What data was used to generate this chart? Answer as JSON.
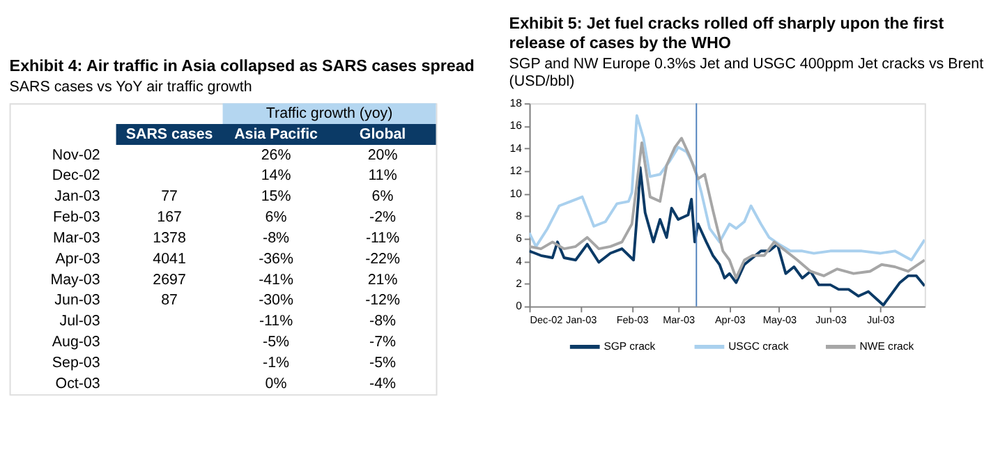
{
  "chart_data": [
    {
      "type": "other",
      "title": "Exhibit 4: Air traffic in Asia collapsed as SARS cases spread",
      "subtitle": "SARS cases vs YoY air traffic growth",
      "annotations": [
        "Traffic growth (yoy)"
      ],
      "categories": [
        "Nov-02",
        "Dec-02",
        "Jan-03",
        "Feb-03",
        "Mar-03",
        "Apr-03",
        "May-03",
        "Jun-03",
        "Jul-03",
        "Aug-03",
        "Sep-03",
        "Oct-03"
      ],
      "series": [
        {
          "name": "SARS cases",
          "values": [
            null,
            null,
            77,
            167,
            1378,
            4041,
            2697,
            87,
            null,
            null,
            null,
            null
          ],
          "value_labels": [
            null,
            null,
            "77",
            "167",
            "1378",
            "4041",
            "2697",
            "87",
            null,
            null,
            null,
            null
          ]
        },
        {
          "name": "Asia Pacific",
          "values": [
            26,
            14,
            15,
            6,
            -8,
            -36,
            -41,
            -30,
            -11,
            -5,
            -1,
            0
          ],
          "value_labels": [
            "26%",
            "14%",
            "15%",
            "6%",
            "-8%",
            "-36%",
            "-41%",
            "-30%",
            "-11%",
            "-5%",
            "-1%",
            "0%"
          ]
        },
        {
          "name": "Global",
          "values": [
            20,
            11,
            6,
            -2,
            -11,
            -22,
            21,
            -12,
            -8,
            -7,
            -5,
            -4
          ],
          "value_labels": [
            "20%",
            "11%",
            "6%",
            "-2%",
            "-11%",
            "-22%",
            "21%",
            "-12%",
            "-8%",
            "-7%",
            "-5%",
            "-4%"
          ]
        }
      ]
    },
    {
      "type": "line",
      "title": "Exhibit 5: Jet fuel cracks rolled off sharply upon the first release of cases by the WHO",
      "subtitle": "SGP and NW Europe 0.3%s Jet and USGC 400ppm Jet cracks vs Brent (USD/bbl)",
      "xlim": [
        "2002-12-01",
        "2003-07-28"
      ],
      "xticks": [
        {
          "value": "2002-12-01",
          "label": "Dec-02"
        },
        {
          "value": "2003-01-01",
          "label": "Jan-03"
        },
        {
          "value": "2003-02-01",
          "label": "Feb-03"
        },
        {
          "value": "2003-03-01",
          "label": "Mar-03"
        },
        {
          "value": "2003-04-01",
          "label": "Apr-03"
        },
        {
          "value": "2003-05-01",
          "label": "May-03"
        },
        {
          "value": "2003-06-01",
          "label": "Jun-03"
        },
        {
          "value": "2003-07-01",
          "label": "Jul-03"
        }
      ],
      "ylim": [
        0,
        18
      ],
      "yticks": [
        0,
        2,
        4,
        6,
        8,
        10,
        12,
        14,
        16,
        18
      ],
      "grid": false,
      "legend": "bottom",
      "line_style": "solid",
      "ref_lines": [
        {
          "axis": "x",
          "value": "2003-03-12",
          "color": "#4f81bd"
        }
      ],
      "series": [
        {
          "name": "SGP crack",
          "color": "#0b3a66",
          "x": [
            "2002-12-01",
            "2002-12-08",
            "2002-12-15",
            "2002-12-18",
            "2002-12-22",
            "2002-12-29",
            "2003-01-05",
            "2003-01-12",
            "2003-01-19",
            "2003-01-26",
            "2003-02-02",
            "2003-02-05",
            "2003-02-06",
            "2003-02-09",
            "2003-02-14",
            "2003-02-18",
            "2003-02-22",
            "2003-02-25",
            "2003-03-01",
            "2003-03-07",
            "2003-03-09",
            "2003-03-11",
            "2003-03-13",
            "2003-03-18",
            "2003-03-22",
            "2003-03-26",
            "2003-03-29",
            "2003-04-01",
            "2003-04-05",
            "2003-04-10",
            "2003-04-15",
            "2003-04-20",
            "2003-04-25",
            "2003-04-30",
            "2003-05-05",
            "2003-05-10",
            "2003-05-15",
            "2003-05-20",
            "2003-05-25",
            "2003-06-01",
            "2003-06-06",
            "2003-06-12",
            "2003-06-18",
            "2003-06-24",
            "2003-06-30",
            "2003-07-03",
            "2003-07-08",
            "2003-07-13",
            "2003-07-18",
            "2003-07-23",
            "2003-07-28"
          ],
          "values": [
            4.9,
            4.5,
            4.3,
            5.7,
            4.3,
            4.1,
            5.5,
            3.9,
            4.7,
            5.1,
            4.1,
            9.7,
            12.3,
            8.3,
            5.7,
            7.7,
            6.1,
            8.7,
            7.7,
            8.1,
            9.5,
            5.7,
            7.3,
            5.7,
            4.5,
            3.7,
            2.5,
            2.9,
            2.1,
            3.7,
            4.3,
            4.9,
            4.9,
            5.5,
            2.9,
            3.5,
            2.5,
            3.1,
            1.9,
            1.9,
            1.5,
            1.5,
            0.9,
            1.3,
            0.5,
            0.1,
            1.1,
            2.1,
            2.7,
            2.7,
            1.8
          ]
        },
        {
          "name": "USGC crack",
          "color": "#a9d0ee",
          "x": [
            "2002-12-01",
            "2002-12-05",
            "2002-12-12",
            "2002-12-19",
            "2002-12-26",
            "2003-01-02",
            "2003-01-09",
            "2003-01-16",
            "2003-01-23",
            "2003-01-30",
            "2003-02-01",
            "2003-02-04",
            "2003-02-08",
            "2003-02-12",
            "2003-02-18",
            "2003-02-24",
            "2003-03-01",
            "2003-03-06",
            "2003-03-11",
            "2003-03-15",
            "2003-03-20",
            "2003-03-26",
            "2003-04-01",
            "2003-04-05",
            "2003-04-10",
            "2003-04-14",
            "2003-04-20",
            "2003-04-25",
            "2003-05-01",
            "2003-05-08",
            "2003-05-15",
            "2003-05-22",
            "2003-06-01",
            "2003-06-10",
            "2003-06-20",
            "2003-07-01",
            "2003-07-10",
            "2003-07-20",
            "2003-07-28"
          ],
          "values": [
            6.5,
            5.3,
            6.9,
            8.9,
            9.3,
            9.7,
            7.1,
            7.5,
            9.1,
            9.3,
            10.1,
            16.9,
            14.9,
            11.5,
            11.7,
            12.9,
            14.1,
            13.7,
            12.3,
            10.1,
            6.9,
            5.7,
            7.3,
            6.9,
            7.5,
            8.9,
            7.3,
            6.1,
            5.5,
            4.9,
            4.9,
            4.7,
            4.9,
            4.9,
            4.9,
            4.7,
            4.9,
            4.1,
            5.9
          ]
        },
        {
          "name": "NWE crack",
          "color": "#a6a6a6",
          "x": [
            "2002-12-01",
            "2002-12-08",
            "2002-12-15",
            "2002-12-22",
            "2002-12-29",
            "2003-01-05",
            "2003-01-12",
            "2003-01-19",
            "2003-01-26",
            "2003-02-01",
            "2003-02-07",
            "2003-02-12",
            "2003-02-18",
            "2003-02-22",
            "2003-02-27",
            "2003-03-03",
            "2003-03-08",
            "2003-03-13",
            "2003-03-17",
            "2003-03-22",
            "2003-03-28",
            "2003-04-01",
            "2003-04-05",
            "2003-04-10",
            "2003-04-15",
            "2003-04-22",
            "2003-04-28",
            "2003-05-05",
            "2003-05-12",
            "2003-05-20",
            "2003-05-28",
            "2003-06-05",
            "2003-06-15",
            "2003-06-25",
            "2003-07-02",
            "2003-07-10",
            "2003-07-18",
            "2003-07-28"
          ],
          "values": [
            5.3,
            5.1,
            5.7,
            5.1,
            5.3,
            6.1,
            5.1,
            5.3,
            5.7,
            7.3,
            14.5,
            9.7,
            9.3,
            12.5,
            14.1,
            14.9,
            13.3,
            11.3,
            11.7,
            8.5,
            4.9,
            4.1,
            2.5,
            4.1,
            4.5,
            4.5,
            5.7,
            4.9,
            4.1,
            3.1,
            2.7,
            3.3,
            2.9,
            3.1,
            3.7,
            3.5,
            3.1,
            4.1
          ]
        }
      ]
    }
  ]
}
